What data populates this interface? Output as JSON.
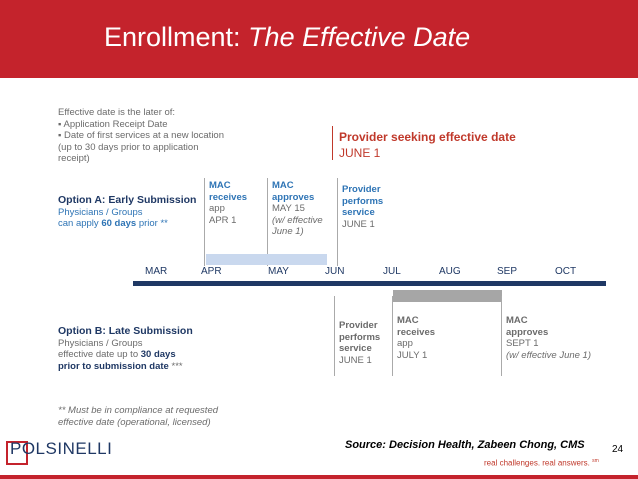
{
  "header": {
    "title_plain": "Enrollment: ",
    "title_italic": "The Effective Date"
  },
  "intro": {
    "lines": [
      "Effective date is the later of:",
      "▪ Application Receipt Date",
      "▪ Date of first services at a new location",
      "   (up to 30 days prior to application",
      "   receipt)"
    ]
  },
  "provider_seeking": {
    "title": "Provider seeking effective date",
    "date": "JUNE 1"
  },
  "option_a": {
    "title": "Option A: Early Submission",
    "line1": "Physicians / Groups",
    "line2_pre": "can apply ",
    "line2_bold": "60 days",
    "line2_post": " prior **"
  },
  "col_a1": {
    "l1": "MAC",
    "l2": "receives",
    "l3": "app",
    "l4": "APR 1"
  },
  "col_a2": {
    "l1": "MAC",
    "l2": "approves",
    "l3": "MAY 15",
    "l4": "(w/ effective",
    "l5": "June 1)"
  },
  "col_a3": {
    "l1": "Provider",
    "l2": "performs",
    "l3": "service",
    "l4": "JUNE 1"
  },
  "timeline": {
    "months": [
      "MAR",
      "APR",
      "MAY",
      "JUN",
      "JUL",
      "AUG",
      "SEP",
      "OCT"
    ]
  },
  "option_b": {
    "title": "Option B: Late Submission",
    "line1": "Physicians / Groups",
    "line2_pre": " effective date up to ",
    "line2_bold": "30 days",
    "line3_bold": "prior to submission date",
    "line3_post": " ***"
  },
  "col_b1": {
    "l1": "Provider",
    "l2": "performs",
    "l3": "service",
    "l4": "JUNE 1"
  },
  "col_b2": {
    "l1": "MAC",
    "l2": "receives",
    "l3": "app",
    "l4": "JULY 1"
  },
  "col_b3": {
    "l1": "MAC",
    "l2": "approves",
    "l3": "SEPT 1",
    "l4": "(w/ effective  June 1)"
  },
  "footnote": {
    "l1": "** Must be in compliance at requested",
    "l2": "effective date (operational, licensed)"
  },
  "footer": {
    "logo": "POLSINELLI",
    "source": "Source: Decision Health, Zabeen Chong, CMS",
    "page_number": "24",
    "tagline": "real challenges.  real answers.",
    "tagline_mark": "sm"
  },
  "colors": {
    "brand_red": "#c4232c",
    "navy": "#1f3864",
    "accent_blue": "#2e74b5"
  }
}
